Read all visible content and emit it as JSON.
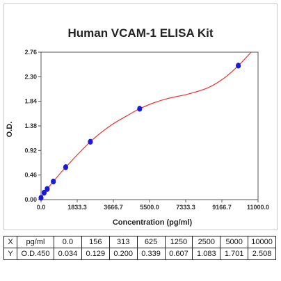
{
  "chart_data": {
    "type": "scatter",
    "title": "Human VCAM-1 ELISA Kit",
    "xlabel": "Concentration (pg/ml)",
    "ylabel": "O.D.",
    "xlim": [
      0,
      11000
    ],
    "ylim": [
      0,
      2.76
    ],
    "xticks": [
      "0.0",
      "1833.3",
      "3666.7",
      "5500.0",
      "7333.3",
      "9166.7",
      "11000.0"
    ],
    "yticks": [
      "0.00",
      "0.46",
      "0.92",
      "1.38",
      "1.84",
      "2.30",
      "2.76"
    ],
    "points": [
      {
        "x": 0,
        "y": 0.034
      },
      {
        "x": 156,
        "y": 0.129
      },
      {
        "x": 313,
        "y": 0.2
      },
      {
        "x": 625,
        "y": 0.339
      },
      {
        "x": 1250,
        "y": 0.607
      },
      {
        "x": 2500,
        "y": 1.083
      },
      {
        "x": 5000,
        "y": 1.701
      },
      {
        "x": 10000,
        "y": 2.508
      }
    ],
    "curve": [
      [
        0,
        0.034
      ],
      [
        156,
        0.129
      ],
      [
        313,
        0.2
      ],
      [
        625,
        0.339
      ],
      [
        1250,
        0.607
      ],
      [
        2500,
        1.083
      ],
      [
        3500,
        1.38
      ],
      [
        4500,
        1.6
      ],
      [
        5000,
        1.701
      ],
      [
        5700,
        1.81
      ],
      [
        6500,
        1.9
      ],
      [
        7500,
        1.98
      ],
      [
        8500,
        2.1
      ],
      [
        9300,
        2.28
      ],
      [
        10000,
        2.508
      ],
      [
        10650,
        2.76
      ]
    ],
    "point_color": "#1a1adc",
    "curve_color": "#e83232",
    "grid": false
  },
  "table": {
    "row_x": {
      "label": "X",
      "unit": "pg/ml",
      "values": [
        "0.0",
        "156",
        "313",
        "625",
        "1250",
        "2500",
        "5000",
        "10000"
      ]
    },
    "row_y": {
      "label": "Y",
      "unit": "O.D.450",
      "values": [
        "0.034",
        "0.129",
        "0.200",
        "0.339",
        "0.607",
        "1.083",
        "1.701",
        "2.508"
      ]
    }
  }
}
